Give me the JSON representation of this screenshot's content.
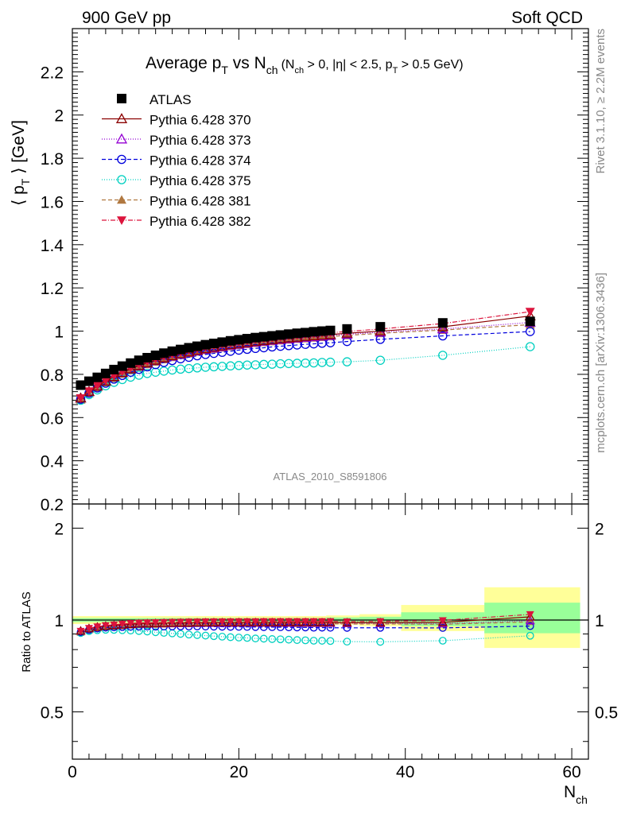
{
  "header": {
    "left": "900 GeV pp",
    "right": "Soft QCD"
  },
  "side_labels": {
    "top": "Rivet 3.1.10, ≥ 2.2M events",
    "bottom": "mcplots.cern.ch [arXiv:1306.3436]"
  },
  "chart_data": {
    "type": "scatter",
    "title": {
      "main": "Average p",
      "sub_t": "T",
      "mid": " vs N",
      "sub_ch": "ch",
      "cuts_a": "(N",
      "cuts_sub_ch": "ch",
      "cuts_b": " > 0, |η| < 2.5, p",
      "cuts_sub_t": "T",
      "cuts_c": " > 0.5 GeV)"
    },
    "watermark": "ATLAS_2010_S8591806",
    "ylabel": {
      "pre": "⟨ p",
      "sub": "T",
      "post": " ⟩ [GeV]"
    },
    "ratio_ylabel": "Ratio to ATLAS",
    "xlabel": {
      "main": "N",
      "sub": "ch"
    },
    "xlim": [
      0,
      62
    ],
    "ylim": [
      0.2,
      2.4
    ],
    "ratio_ylim": [
      0.35,
      2.4
    ],
    "ratio_log": true,
    "x_ticks": [
      "0",
      "20",
      "40",
      "60"
    ],
    "y_ticks": [
      "0.2",
      "0.4",
      "0.6",
      "0.8",
      "1",
      "1.2",
      "1.4",
      "1.6",
      "1.8",
      "2",
      "2.2"
    ],
    "ratio_ticks": [
      "0.5",
      "1",
      "2"
    ],
    "x": [
      1,
      2,
      3,
      4,
      5,
      6,
      7,
      8,
      9,
      10,
      11,
      12,
      13,
      14,
      15,
      16,
      17,
      18,
      19,
      20,
      21,
      22,
      23,
      24,
      25,
      26,
      27,
      28,
      29,
      30,
      31,
      33,
      37,
      44.5,
      55
    ],
    "bands": [
      {
        "x0": 0,
        "x1": 30.5,
        "yellow": [
          0.97,
          1.03
        ],
        "green": [
          0.985,
          1.015
        ]
      },
      {
        "x0": 30.5,
        "x1": 34.5,
        "yellow": [
          0.965,
          1.035
        ],
        "green": [
          0.98,
          1.02
        ]
      },
      {
        "x0": 34.5,
        "x1": 39.5,
        "yellow": [
          0.955,
          1.045
        ],
        "green": [
          0.975,
          1.025
        ]
      },
      {
        "x0": 39.5,
        "x1": 49.5,
        "yellow": [
          0.92,
          1.12
        ],
        "green": [
          0.955,
          1.06
        ]
      },
      {
        "x0": 49.5,
        "x1": 61,
        "yellow": [
          0.81,
          1.28
        ],
        "green": [
          0.905,
          1.14
        ]
      }
    ],
    "series": [
      {
        "name": "ATLAS",
        "color": "#000000",
        "marker": "square",
        "dash": "",
        "values": [
          0.75,
          0.768,
          0.786,
          0.804,
          0.822,
          0.838,
          0.852,
          0.865,
          0.877,
          0.888,
          0.898,
          0.907,
          0.915,
          0.923,
          0.93,
          0.937,
          0.943,
          0.949,
          0.955,
          0.96,
          0.965,
          0.97,
          0.974,
          0.978,
          0.982,
          0.986,
          0.99,
          0.993,
          0.997,
          1.0,
          1.003,
          1.01,
          1.02,
          1.038,
          1.045
        ]
      },
      {
        "name": "Pythia 6.428 370",
        "color": "#8b0000",
        "marker": "triangle-open",
        "dash": "",
        "values": [
          0.69,
          0.72,
          0.745,
          0.768,
          0.789,
          0.808,
          0.825,
          0.84,
          0.853,
          0.865,
          0.876,
          0.886,
          0.895,
          0.903,
          0.911,
          0.918,
          0.925,
          0.931,
          0.937,
          0.942,
          0.947,
          0.952,
          0.956,
          0.96,
          0.964,
          0.968,
          0.971,
          0.975,
          0.978,
          0.981,
          0.984,
          0.99,
          1.0,
          1.02,
          1.07
        ]
      },
      {
        "name": "Pythia 6.428 373",
        "color": "#9400d3",
        "marker": "triangle-open",
        "dash": "1,2",
        "values": [
          0.69,
          0.72,
          0.745,
          0.768,
          0.789,
          0.808,
          0.824,
          0.839,
          0.852,
          0.864,
          0.875,
          0.884,
          0.893,
          0.901,
          0.909,
          0.916,
          0.922,
          0.928,
          0.934,
          0.939,
          0.944,
          0.949,
          0.953,
          0.957,
          0.961,
          0.964,
          0.968,
          0.971,
          0.974,
          0.977,
          0.98,
          0.985,
          0.995,
          1.01,
          1.04
        ]
      },
      {
        "name": "Pythia 6.428 374",
        "color": "#0000dd",
        "marker": "circle-open",
        "dash": "5,3",
        "values": [
          0.685,
          0.713,
          0.737,
          0.759,
          0.778,
          0.795,
          0.81,
          0.823,
          0.835,
          0.845,
          0.855,
          0.864,
          0.872,
          0.879,
          0.886,
          0.892,
          0.897,
          0.902,
          0.907,
          0.912,
          0.916,
          0.92,
          0.923,
          0.927,
          0.93,
          0.933,
          0.936,
          0.939,
          0.941,
          0.944,
          0.946,
          0.952,
          0.962,
          0.978,
          0.998
        ]
      },
      {
        "name": "Pythia 6.428 375",
        "color": "#00d0c0",
        "marker": "circle-open",
        "dash": "1,2",
        "values": [
          0.68,
          0.706,
          0.728,
          0.747,
          0.763,
          0.776,
          0.787,
          0.796,
          0.804,
          0.81,
          0.815,
          0.82,
          0.824,
          0.827,
          0.83,
          0.833,
          0.835,
          0.837,
          0.839,
          0.841,
          0.843,
          0.844,
          0.846,
          0.847,
          0.849,
          0.85,
          0.851,
          0.852,
          0.853,
          0.855,
          0.856,
          0.858,
          0.865,
          0.888,
          0.928
        ]
      },
      {
        "name": "Pythia 6.428 381",
        "color": "#b07840",
        "marker": "triangle-filled",
        "dash": "5,3",
        "values": [
          0.682,
          0.712,
          0.738,
          0.761,
          0.782,
          0.801,
          0.818,
          0.833,
          0.846,
          0.858,
          0.869,
          0.879,
          0.888,
          0.896,
          0.904,
          0.911,
          0.917,
          0.923,
          0.929,
          0.934,
          0.939,
          0.944,
          0.948,
          0.952,
          0.956,
          0.96,
          0.963,
          0.966,
          0.969,
          0.972,
          0.975,
          0.98,
          0.99,
          1.005,
          1.03
        ]
      },
      {
        "name": "Pythia 6.428 382",
        "color": "#dc143c",
        "marker": "triangle-down-filled",
        "dash": "6,2,1,2",
        "values": [
          0.69,
          0.722,
          0.748,
          0.772,
          0.794,
          0.813,
          0.831,
          0.846,
          0.86,
          0.872,
          0.883,
          0.893,
          0.902,
          0.911,
          0.918,
          0.926,
          0.932,
          0.938,
          0.944,
          0.95,
          0.955,
          0.96,
          0.964,
          0.968,
          0.972,
          0.976,
          0.98,
          0.983,
          0.987,
          0.99,
          0.993,
          0.998,
          1.01,
          1.035,
          1.09
        ]
      }
    ]
  }
}
